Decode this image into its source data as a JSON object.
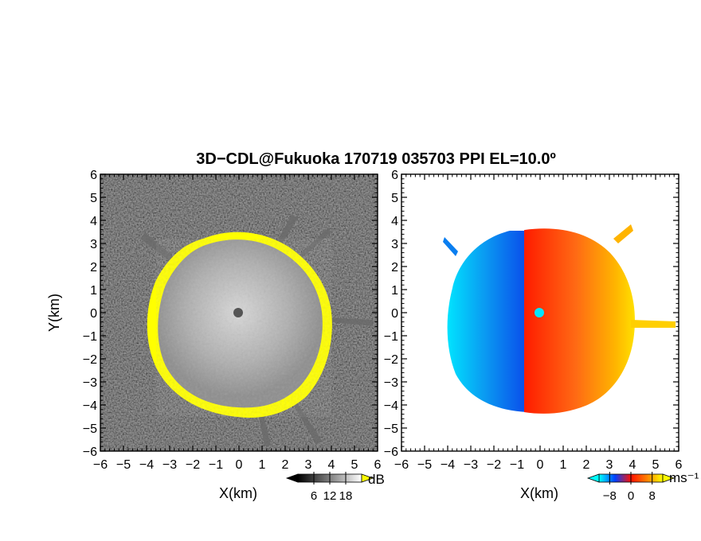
{
  "chart_data": [
    {
      "type": "heatmap",
      "panel": "reflectivity",
      "title": "3D−CDL@Fukuoka 170719 035703 PPI EL=10.0º",
      "xlabel": "X(km)",
      "ylabel": "Y(km)",
      "xlim": [
        -6,
        6
      ],
      "ylim": [
        -6,
        6
      ],
      "xticks": [
        "−6",
        "−5",
        "−4",
        "−3",
        "−2",
        "−1",
        "0",
        "1",
        "2",
        "3",
        "4",
        "5",
        "6"
      ],
      "yticks": [
        "6",
        "5",
        "4",
        "3",
        "2",
        "1",
        "0",
        "−1",
        "−2",
        "−3",
        "−4",
        "−5",
        "−6"
      ],
      "colorbar": {
        "unit": "dB",
        "ticks": [
          "6",
          "12",
          "18"
        ],
        "tick_values": [
          6,
          12,
          18
        ],
        "range": [
          0,
          24
        ],
        "colors": [
          "#000000",
          "#ffffff"
        ],
        "over_color": "#ffff00"
      },
      "echo_radius_km": 3.5,
      "edge_color": "#ffff00"
    },
    {
      "type": "heatmap",
      "panel": "doppler-velocity",
      "xlabel": "X(km)",
      "xlim": [
        -6,
        6
      ],
      "ylim": [
        -6,
        6
      ],
      "xticks": [
        "−6",
        "−5",
        "−4",
        "−3",
        "−2",
        "−1",
        "0",
        "1",
        "2",
        "3",
        "4",
        "5",
        "6"
      ],
      "yticks": [
        "6",
        "5",
        "4",
        "3",
        "2",
        "1",
        "0",
        "−1",
        "−2",
        "−3",
        "−4",
        "−5",
        "−6"
      ],
      "colorbar": {
        "unit": "ms⁻¹",
        "ticks": [
          "−8",
          "0",
          "8"
        ],
        "tick_values": [
          -8,
          0,
          8
        ],
        "range": [
          -12,
          12
        ],
        "colors": [
          "#00ffff",
          "#0040ff",
          "#ff1000",
          "#ff8000",
          "#ffff00"
        ]
      },
      "echo_radius_km": 3.5,
      "negative_color": "#0a55ee",
      "positive_color": "#ff4a10"
    }
  ]
}
